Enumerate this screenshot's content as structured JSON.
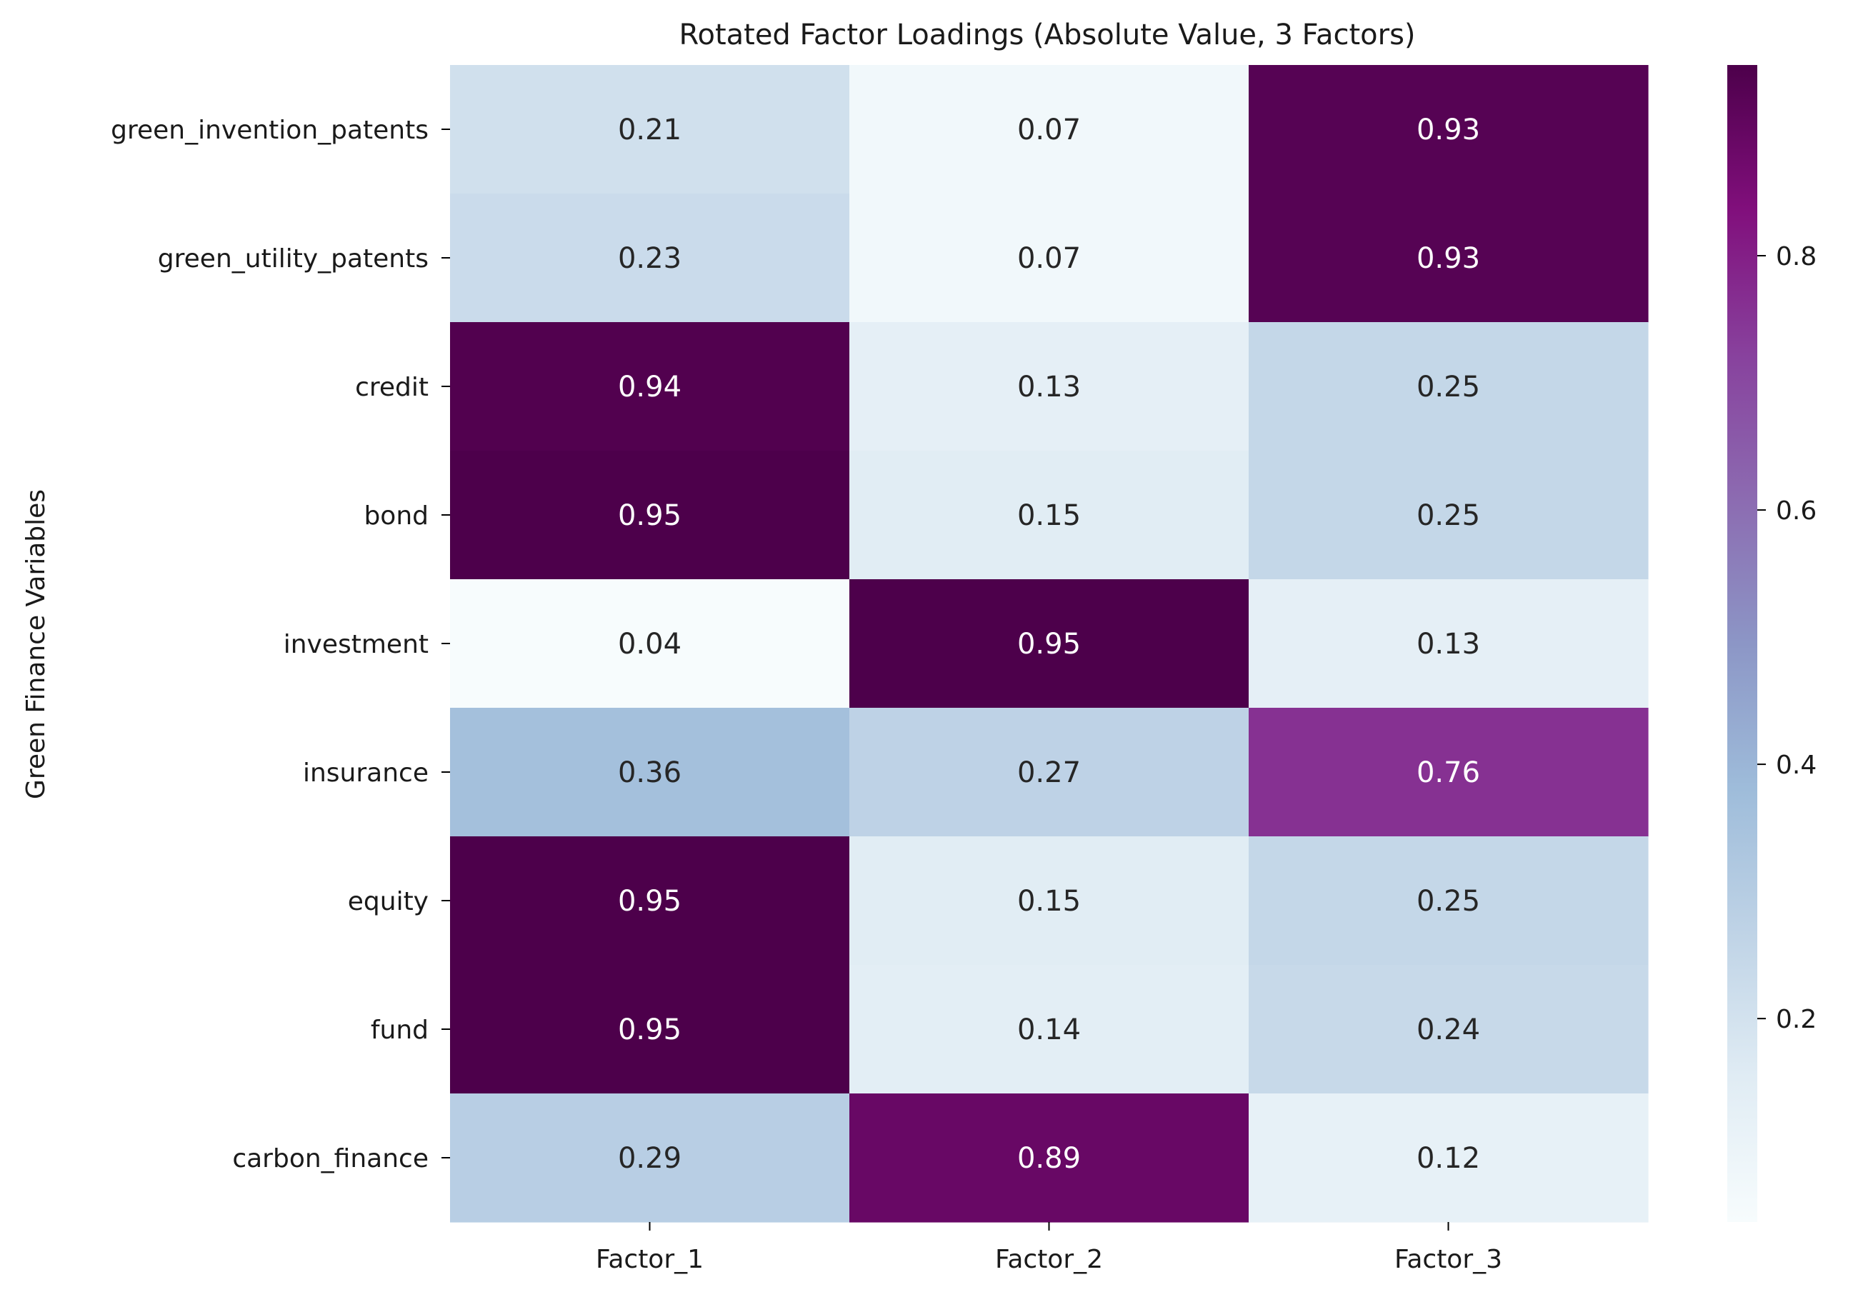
{
  "chart_data": {
    "type": "heatmap",
    "title": "Rotated Factor Loadings (Absolute Value, 3 Factors)",
    "xlabel": "",
    "ylabel": "Green Finance Variables",
    "columns": [
      "Factor_1",
      "Factor_2",
      "Factor_3"
    ],
    "rows": [
      "green_invention_patents",
      "green_utility_patents",
      "credit",
      "bond",
      "investment",
      "insurance",
      "equity",
      "fund",
      "carbon_finance"
    ],
    "values": [
      [
        0.21,
        0.07,
        0.93
      ],
      [
        0.23,
        0.07,
        0.93
      ],
      [
        0.94,
        0.13,
        0.25
      ],
      [
        0.95,
        0.15,
        0.25
      ],
      [
        0.04,
        0.95,
        0.13
      ],
      [
        0.36,
        0.27,
        0.76
      ],
      [
        0.95,
        0.15,
        0.25
      ],
      [
        0.95,
        0.14,
        0.24
      ],
      [
        0.29,
        0.89,
        0.12
      ]
    ],
    "value_format": "0.00",
    "colormap": "BuPu",
    "vmin": 0.04,
    "vmax": 0.95,
    "colorbar_ticks": [
      0.2,
      0.4,
      0.6,
      0.8
    ],
    "colorbar_tick_labels": [
      "0.2",
      "0.4",
      "0.6",
      "0.8"
    ],
    "grid": false,
    "legend": "colorbar-right"
  }
}
